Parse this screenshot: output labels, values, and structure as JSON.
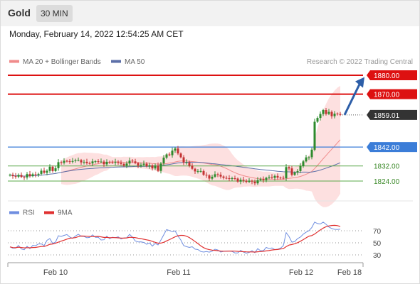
{
  "header": {
    "asset": "Gold",
    "timeframe": "30 MIN",
    "datetime": "Monday, February 14, 2022 12:54:25 AM CET"
  },
  "legend": {
    "bollinger": "MA 20 + Bollinger Bands",
    "ma50": "MA 50",
    "copyright": "Research © 2022 Trading Central"
  },
  "rsi_legend": {
    "rsi": "RSI",
    "ma9": "9MA"
  },
  "colors": {
    "resistance": "#dd1111",
    "support": "#3b7dd8",
    "minor_support": "#5aa84a",
    "current": "#333333",
    "candle_up": "#2e8b2e",
    "candle_down": "#c43333",
    "band_fill": "#fcd8d8",
    "ma20": "#f08b8b",
    "ma50": "#5c6fa8",
    "rsi": "#6f8ee0",
    "rsi_ma": "#e03030",
    "arrow": "#2d5ea8"
  },
  "chart_data": [
    {
      "type": "candlestick",
      "x_ticks": [
        "Feb 10",
        "Feb 11",
        "Feb 12",
        "Feb 18"
      ],
      "ylim": [
        1818,
        1885
      ],
      "levels": [
        {
          "label": "1880.00",
          "value": 1880,
          "kind": "resistance"
        },
        {
          "label": "1870.00",
          "value": 1870,
          "kind": "resistance"
        },
        {
          "label": "1859.01",
          "value": 1859.01,
          "kind": "current"
        },
        {
          "label": "1842.00",
          "value": 1842,
          "kind": "support"
        },
        {
          "label": "1832.00",
          "value": 1832,
          "kind": "minor_support"
        },
        {
          "label": "1824.00",
          "value": 1824,
          "kind": "minor_support"
        }
      ],
      "close_series": [
        1827.3,
        1826.6,
        1826.3,
        1827.2,
        1826.2,
        1825.9,
        1827.7,
        1826.6,
        1827.6,
        1827.3,
        1827.8,
        1829.5,
        1828.4,
        1829.4,
        1831.6,
        1829.3,
        1830.8,
        1834.0,
        1833.6,
        1834.7,
        1834.5,
        1834.4,
        1834.6,
        1835.0,
        1835.1,
        1833.9,
        1834.2,
        1833.5,
        1833.3,
        1834.4,
        1834.5,
        1834.2,
        1834.3,
        1832.9,
        1834.2,
        1833.9,
        1833.7,
        1834.2,
        1833.7,
        1833.1,
        1832.2,
        1833.3,
        1834.8,
        1834.4,
        1833.5,
        1832.2,
        1832.6,
        1833.2,
        1831.8,
        1832.3,
        1830.7,
        1832.2,
        1829.4,
        1833.3,
        1836.4,
        1838.1,
        1837.7,
        1840.1,
        1841.2,
        1838.6,
        1836.6,
        1833.8,
        1833.9,
        1832.1,
        1830.5,
        1829.1,
        1829.3,
        1829.3,
        1827.3,
        1827.0,
        1825.3,
        1826.3,
        1827.6,
        1827.4,
        1826.4,
        1825.7,
        1825.5,
        1825.2,
        1825.5,
        1825.3,
        1823.7,
        1824.7,
        1824.2,
        1823.6,
        1824.2,
        1823.7,
        1822.8,
        1824.5,
        1825.1,
        1824.5,
        1825.7,
        1826.1,
        1825.7,
        1826.7,
        1825.8,
        1825.7,
        1825.5,
        1831.4,
        1830.7,
        1827.3,
        1828.5,
        1829.3,
        1831.9,
        1834.4,
        1836.5,
        1836.6,
        1840.6,
        1855.4,
        1857.4,
        1859.5,
        1861.6,
        1859.5,
        1860.6,
        1858.3,
        1859.7,
        1859.5,
        1859.0
      ],
      "rsi": [
        43.3,
        41.0,
        41.3,
        45.6,
        39.8,
        38.6,
        44.1,
        40.3,
        45.7,
        45.2,
        48.1,
        48.2,
        45.4,
        54.1,
        56.9,
        49.1,
        51.2,
        61.6,
        60.6,
        62.4,
        63.7,
        59.6,
        57.3,
        61.3,
        64.1,
        60.9,
        60.6,
        58.4,
        59.0,
        63.2,
        59.1,
        59.3,
        54.7,
        55.1,
        61.1,
        56.8,
        59.3,
        58.4,
        59.9,
        56.4,
        58.1,
        58.3,
        64.0,
        59.4,
        53.2,
        51.5,
        51.6,
        50.6,
        47.7,
        49.9,
        44.6,
        49.1,
        46.5,
        54.6,
        63.3,
        71.9,
        70.4,
        68.3,
        69.9,
        61.2,
        54.7,
        45.4,
        43.7,
        42.4,
        43.5,
        39.5,
        38.8,
        35.6,
        34.7,
        35.5,
        34.6,
        36.1,
        39.4,
        38.1,
        34.7,
        35.9,
        36.3,
        36.5,
        35.8,
        33.3,
        33.2,
        37.5,
        34.6,
        32.8,
        34.1,
        36.9,
        33.7,
        40.4,
        37.0,
        37.0,
        42.4,
        40.5,
        41.5,
        38.8,
        39.4,
        41.0,
        45.3,
        66.8,
        60.5,
        51.2,
        52.0,
        57.1,
        59.5,
        64.4,
        67.5,
        70.2,
        75.4,
        84.4,
        81.9,
        81.3,
        84.2,
        80.7,
        76.2,
        73.6,
        72.3,
        72.0,
        72.6
      ],
      "rsi_ticks": [
        70,
        50,
        30
      ]
    }
  ]
}
